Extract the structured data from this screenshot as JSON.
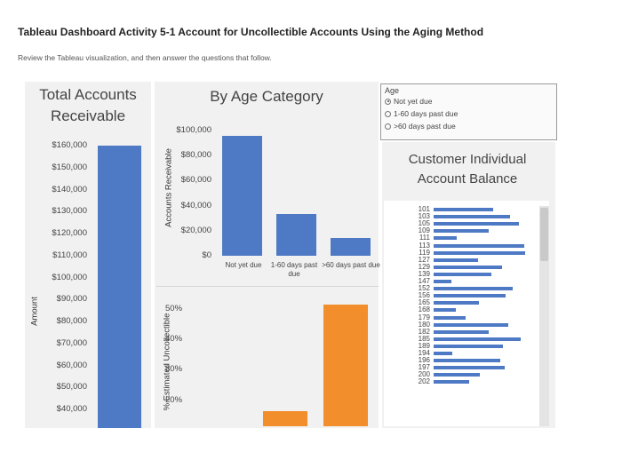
{
  "header": {
    "title": "Tableau Dashboard Activity 5-1 Account for Uncollectible Accounts Using the Aging Method",
    "instructions": "Review the Tableau visualization, and then answer the questions that follow."
  },
  "colors": {
    "blue": "#4e79c4",
    "orange": "#f28e2b",
    "panel": "#f1f1f1"
  },
  "legend": {
    "title": "Age",
    "items": [
      {
        "label": "Not yet due",
        "checked": true
      },
      {
        "label": "1-60 days past due",
        "checked": false
      },
      {
        "label": ">60 days past due",
        "checked": false
      }
    ]
  },
  "chart_data": [
    {
      "type": "bar",
      "title": "Total Accounts Receivable",
      "ylabel": "Amount",
      "ylim": [
        40000,
        160000
      ],
      "yticks": [
        "$160,000",
        "$150,000",
        "$140,000",
        "$130,000",
        "$120,000",
        "$110,000",
        "$100,000",
        "$90,000",
        "$80,000",
        "$70,000",
        "$60,000",
        "$50,000",
        "$40,000"
      ],
      "values": [
        160000
      ]
    },
    {
      "type": "bar",
      "title": "By Age Category",
      "ylabel": "Accounts Receivable",
      "ylim": [
        0,
        100000
      ],
      "yticks": [
        "$100,000",
        "$80,000",
        "$60,000",
        "$40,000",
        "$20,000",
        "$0"
      ],
      "categories": [
        "Not yet due",
        "1-60 days past due",
        ">60 days past due"
      ],
      "values": [
        96000,
        33000,
        14000
      ]
    },
    {
      "type": "bar",
      "ylabel": "% Estimated Uncollectible",
      "ylim": [
        15,
        50
      ],
      "yticks": [
        "50%",
        "40%",
        "30%",
        "20%"
      ],
      "values": [
        null,
        20,
        48
      ]
    },
    {
      "type": "bar",
      "title": "Customer Individual Account Balance",
      "categories": [
        "101",
        "103",
        "105",
        "109",
        "111",
        "113",
        "119",
        "127",
        "129",
        "139",
        "147",
        "152",
        "156",
        "165",
        "168",
        "179",
        "180",
        "182",
        "185",
        "189",
        "194",
        "196",
        "197",
        "200",
        "202"
      ],
      "values": [
        0.61,
        0.78,
        0.87,
        0.56,
        0.24,
        0.93,
        0.94,
        0.45,
        0.7,
        0.59,
        0.18,
        0.81,
        0.74,
        0.46,
        0.23,
        0.33,
        0.76,
        0.56,
        0.89,
        0.71,
        0.19,
        0.68,
        0.73,
        0.47,
        0.36
      ]
    }
  ]
}
